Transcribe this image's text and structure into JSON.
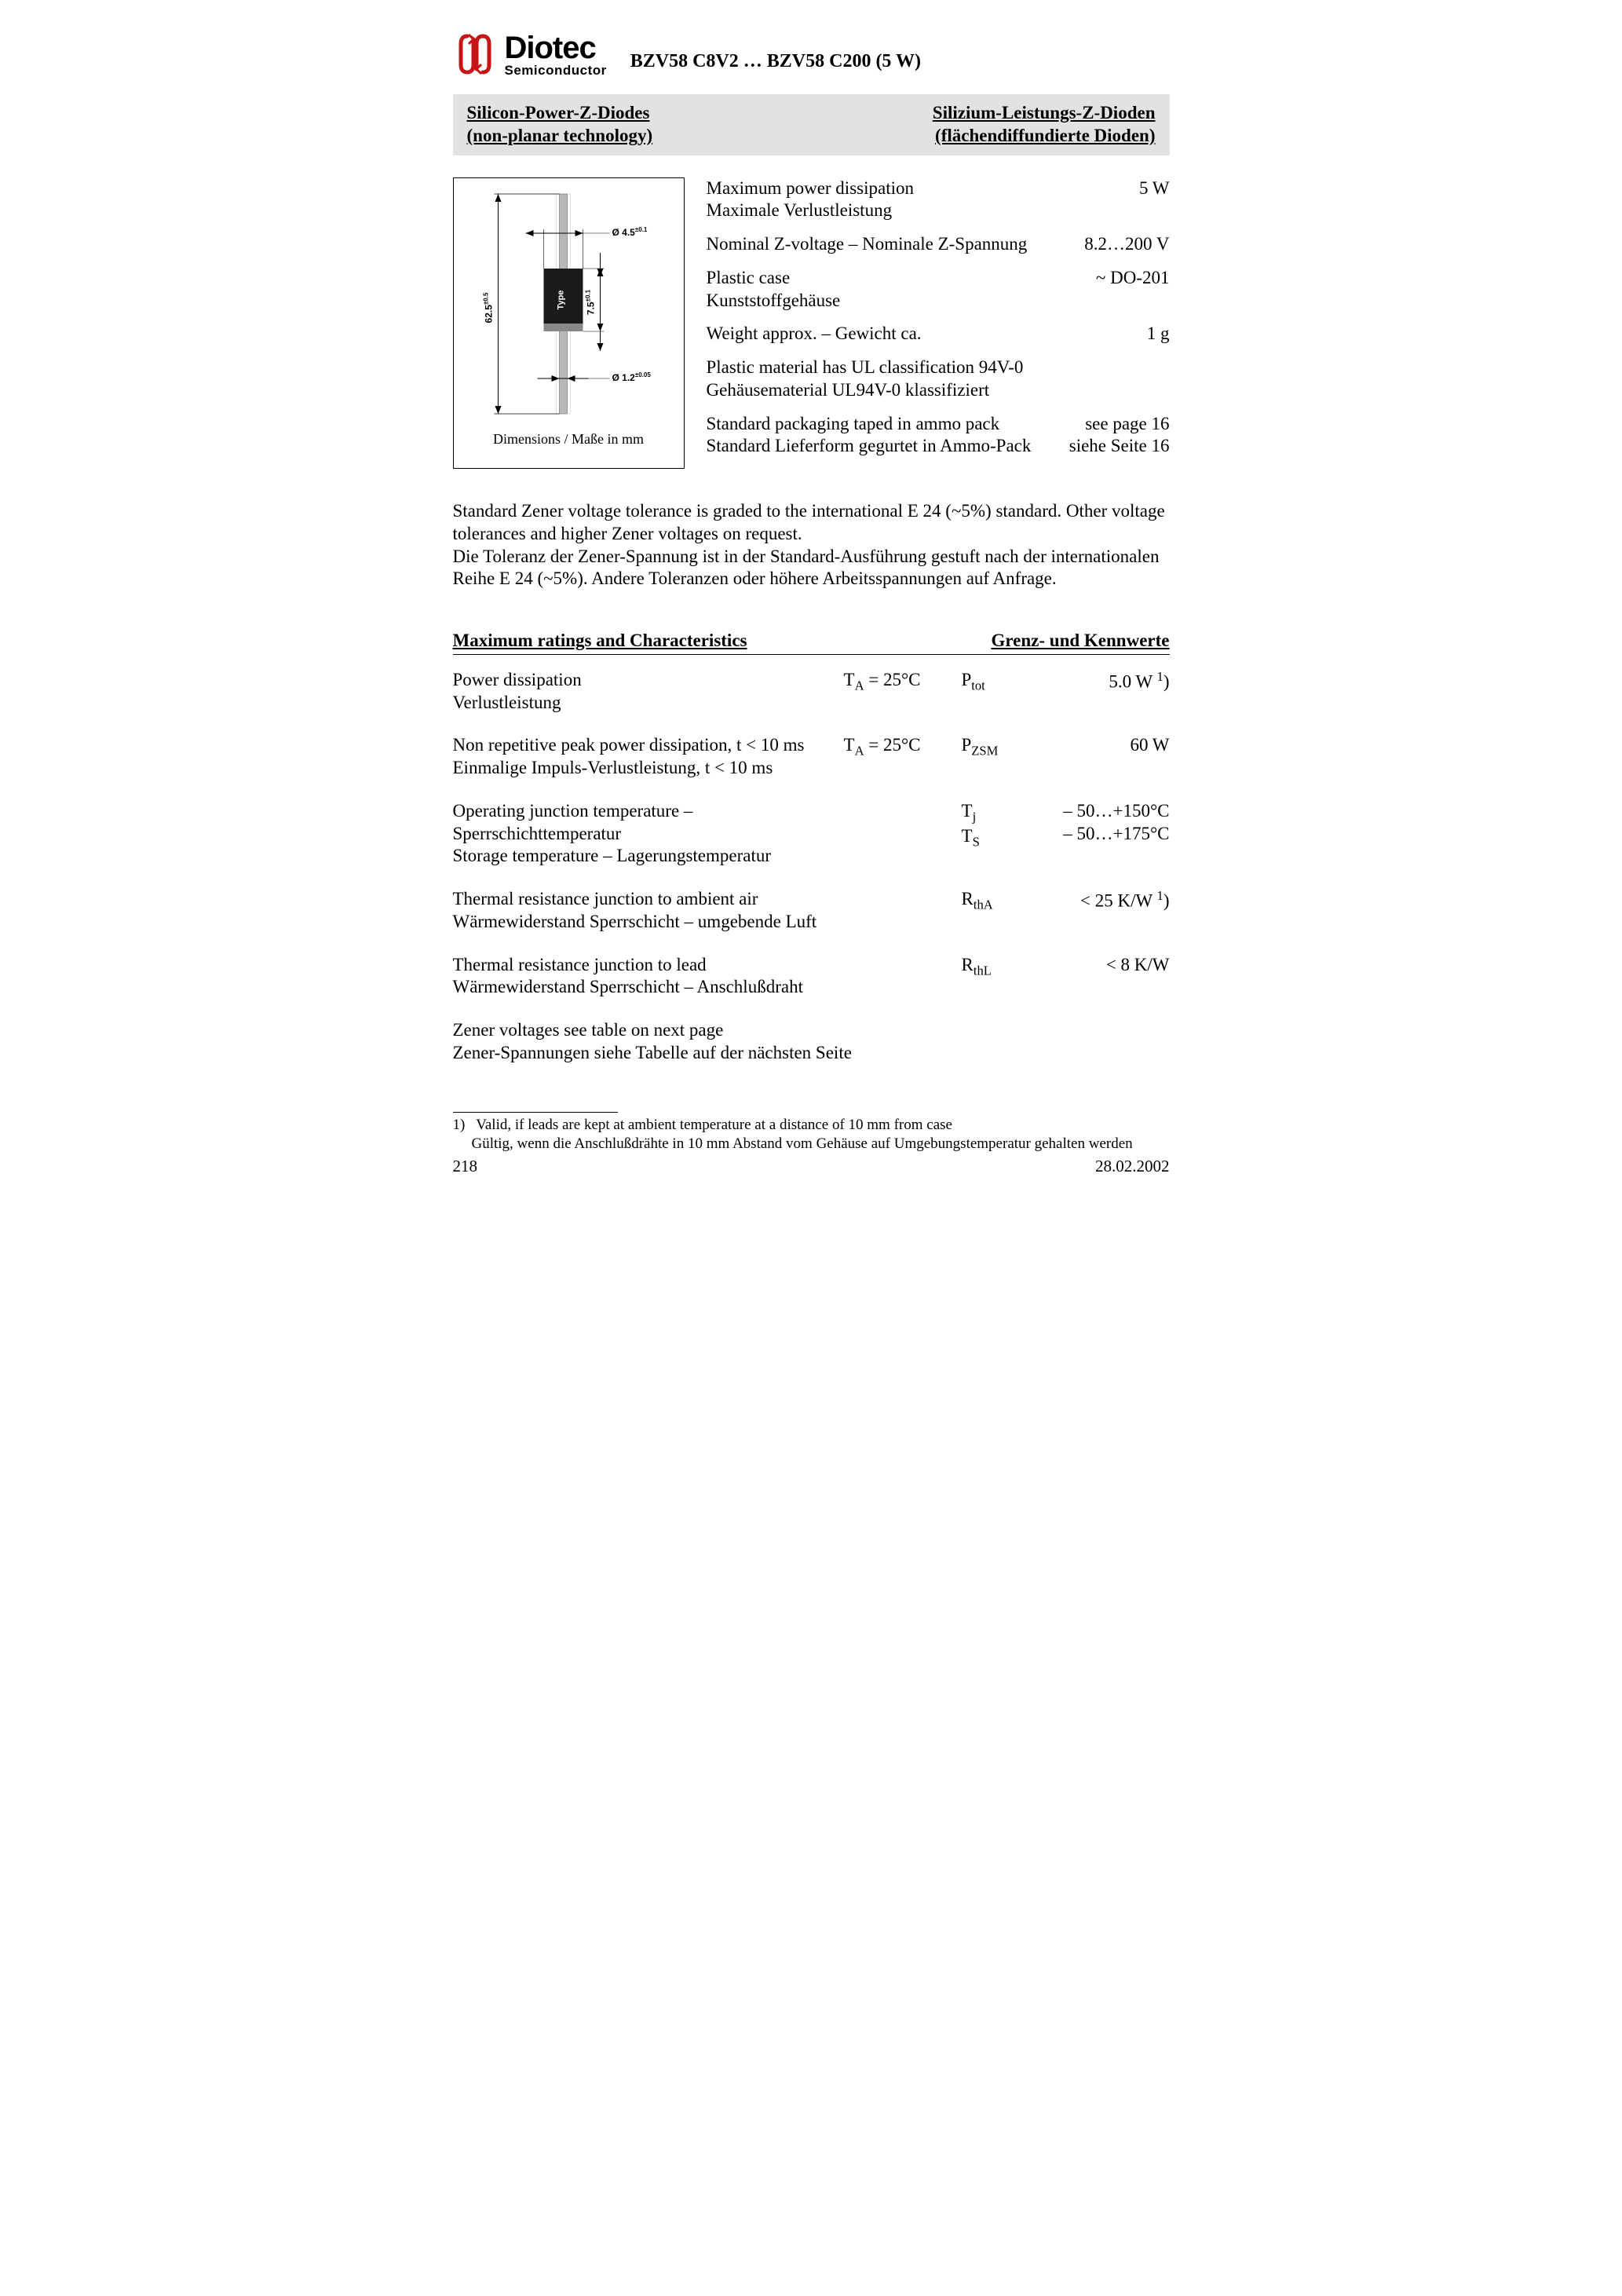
{
  "logo": {
    "name": "Diotec",
    "sub": "Semiconductor",
    "symbol_color": "#c51516"
  },
  "doc_title": "BZV58 C8V2 … BZV58 C200 (5 W)",
  "subtitle": {
    "left1": "Silicon-Power-Z-Diodes",
    "left2": "(non-planar technology)",
    "right1": "Silizium-Leistungs-Z-Dioden",
    "right2": "(flächendiffundierte Dioden)"
  },
  "diagram": {
    "height_label": "62.5",
    "height_tol": "±0.5",
    "diameter_label": "Ø 4.5",
    "diameter_tol": "±0.1",
    "body_label": "7.5",
    "body_tol": "±0.1",
    "lead_label": "Ø 1.2",
    "lead_tol": "±0.05",
    "type_text": "Type",
    "caption": "Dimensions / Maße in mm"
  },
  "specs": [
    {
      "l1": "Maximum power dissipation",
      "l2": "Maximale Verlustleistung",
      "v": "5 W"
    },
    {
      "l1": "Nominal Z-voltage – Nominale Z-Spannung",
      "l2": "",
      "v": "8.2…200 V"
    },
    {
      "l1": "Plastic case",
      "l2": "Kunststoffgehäuse",
      "v": "~ DO-201"
    },
    {
      "l1": "Weight approx. – Gewicht ca.",
      "l2": "",
      "v": "1 g"
    },
    {
      "l1": "Plastic material has UL classification 94V-0",
      "l2": "Gehäusematerial UL94V-0 klassifiziert",
      "v": ""
    },
    {
      "l1": "Standard packaging taped in ammo pack",
      "l2": "Standard Lieferform gegurtet in Ammo-Pack",
      "v": "see page 16",
      "v2": "siehe Seite 16"
    }
  ],
  "paragraph": "Standard Zener voltage tolerance is graded to the international E 24 (~5%) standard. Other voltage tolerances and higher Zener voltages on request.\nDie Toleranz der Zener-Spannung ist in der Standard-Ausführung gestuft nach der internationalen Reihe E 24 (~5%). Andere Toleranzen oder höhere Arbeitsspannungen auf Anfrage.",
  "ratings_title_left": "Maximum ratings and Characteristics",
  "ratings_title_right": "Grenz- und Kennwerte",
  "ratings": [
    {
      "d1": "Power dissipation",
      "d2": "Verlustleistung",
      "cond": "T<sub>A</sub> = 25°C",
      "sym": "P<sub>tot</sub>",
      "val": "5.0 W <sup>1</sup>)"
    },
    {
      "d1": "Non repetitive peak power dissipation, t < 10 ms",
      "d2": "Einmalige Impuls-Verlustleistung, t < 10 ms",
      "cond": "T<sub>A</sub> = 25°C",
      "sym": "P<sub>ZSM</sub>",
      "val": "60 W"
    },
    {
      "d1": "Operating junction temperature – Sperrschichttemperatur",
      "d2": "Storage temperature – Lagerungstemperatur",
      "cond": "",
      "sym": "T<sub>j</sub><br>T<sub>S</sub>",
      "val": "– 50…+150°C<br>– 50…+175°C"
    },
    {
      "d1": "Thermal resistance junction to ambient air",
      "d2": "Wärmewiderstand Sperrschicht – umgebende Luft",
      "cond": "",
      "sym": "R<sub>thA</sub>",
      "val": "< 25 K/W <sup>1</sup>)"
    },
    {
      "d1": "Thermal resistance junction to lead",
      "d2": "Wärmewiderstand Sperrschicht – Anschlußdraht",
      "cond": "",
      "sym": "R<sub>thL</sub>",
      "val": "< 8 K/W"
    }
  ],
  "ratings_note1": "Zener voltages see table on next page",
  "ratings_note2": "Zener-Spannungen siehe Tabelle auf der nächsten Seite",
  "footnote": {
    "marker": "1)",
    "en": "Valid, if leads are kept at ambient temperature at a distance of 10 mm from case",
    "de": "Gültig, wenn die Anschlußdrähte in 10 mm Abstand vom Gehäuse auf Umgebungstemperatur gehalten werden"
  },
  "footer": {
    "page": "218",
    "date": "28.02.2002"
  }
}
